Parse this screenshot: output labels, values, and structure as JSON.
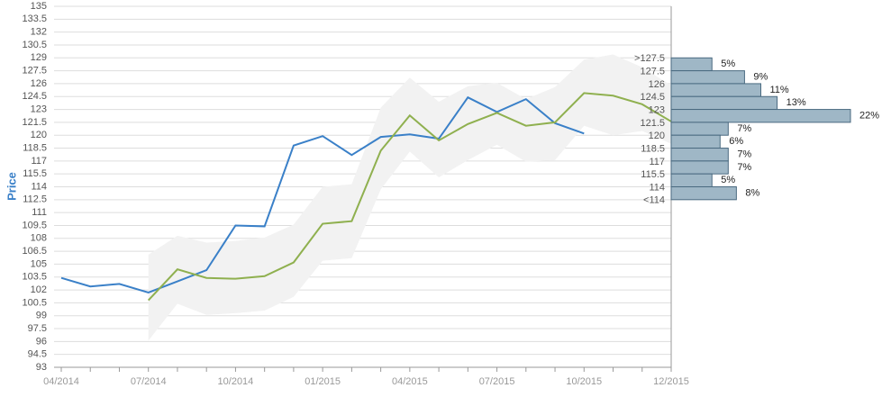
{
  "chart_data": {
    "type": "line",
    "y_label": "Price",
    "categories": [
      "04/2014",
      null,
      null,
      "07/2014",
      null,
      null,
      "10/2014",
      null,
      null,
      "01/2015",
      null,
      null,
      "04/2015",
      null,
      null,
      "07/2015",
      null,
      null,
      "10/2015",
      null,
      null,
      "12/2015"
    ],
    "ylim": [
      93,
      135
    ],
    "yticks": [
      93,
      94.5,
      96,
      97.5,
      99,
      100.5,
      102,
      103.5,
      105,
      106.5,
      108,
      109.5,
      111,
      112.5,
      114,
      115.5,
      117,
      118.5,
      120,
      121.5,
      123,
      124.5,
      126,
      127.5,
      129,
      130.5,
      132,
      133.5,
      135
    ],
    "grid": true,
    "band": {
      "color": "#f2f2f2",
      "upper": [
        null,
        null,
        null,
        106.1,
        108.3,
        107.5,
        107.7,
        108.1,
        109.6,
        114.0,
        114.3,
        123.2,
        126.7,
        123.9,
        125.7,
        126.1,
        124.2,
        125.6,
        128.8,
        129.4,
        127.9,
        125.8
      ],
      "lower": [
        null,
        null,
        null,
        96.1,
        100.4,
        99.1,
        99.3,
        99.6,
        101.2,
        105.4,
        105.7,
        113.7,
        118.1,
        115.1,
        117.1,
        118.9,
        116.9,
        117.1,
        121.1,
        120.0,
        120.5,
        119.0
      ]
    },
    "series": [
      {
        "color": "#3a80c8",
        "values": [
          103.4,
          102.4,
          102.7,
          101.7,
          103.0,
          104.3,
          109.5,
          109.4,
          118.8,
          119.9,
          117.7,
          119.8,
          120.1,
          119.6,
          124.4,
          122.7,
          124.2,
          121.4,
          120.2,
          null,
          null,
          null
        ]
      },
      {
        "color": "#8fb04f",
        "values": [
          null,
          null,
          null,
          100.8,
          104.4,
          103.4,
          103.3,
          103.6,
          105.2,
          109.7,
          110.0,
          118.2,
          122.3,
          119.4,
          121.3,
          122.6,
          121.1,
          121.5,
          124.9,
          124.6,
          123.6,
          121.6
        ]
      }
    ],
    "histogram": {
      "type": "bar",
      "color": "#9fb7c6",
      "categories": [
        ">127.5",
        "127.5",
        "126",
        "124.5",
        "123",
        "121.5",
        "120",
        "118.5",
        "117",
        "115.5",
        "114",
        "<114"
      ],
      "values": [
        5,
        9,
        11,
        13,
        22,
        7,
        6,
        7,
        7,
        5,
        8,
        null
      ],
      "value_labels": [
        "5%",
        "9%",
        "11%",
        "13%",
        "22%",
        "7%",
        "6%",
        "7%",
        "7%",
        "5%",
        "8%",
        null
      ],
      "xlim": [
        0,
        22
      ]
    }
  }
}
